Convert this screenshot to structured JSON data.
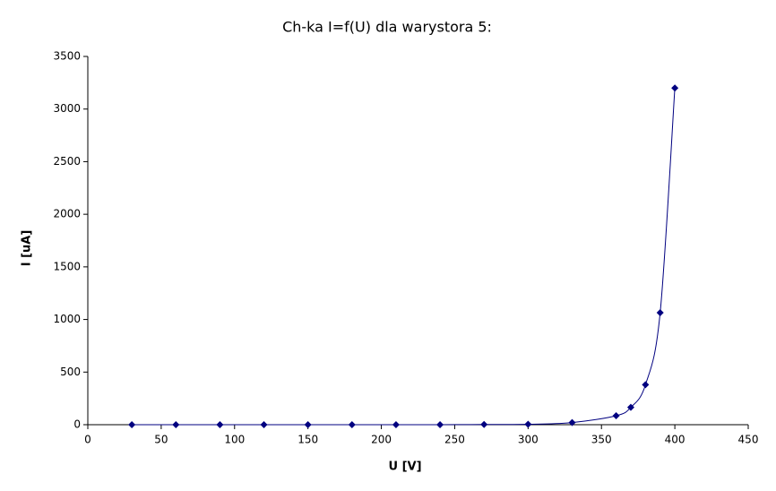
{
  "chart_data": {
    "type": "scatter",
    "title": "Ch-ka I=f(U) dla warystora 5:",
    "x_label": "U [V]",
    "y_label": "I [uA]",
    "x": [
      30,
      60,
      90,
      120,
      150,
      180,
      210,
      240,
      270,
      300,
      330,
      360,
      370,
      380,
      390,
      400
    ],
    "series": [
      {
        "color": "#000080",
        "values": [
          0,
          0,
          0,
          0,
          0,
          0,
          0,
          0,
          2,
          4,
          20,
          85,
          165,
          380,
          1065,
          3200
        ]
      }
    ],
    "xlim": [
      0,
      450
    ],
    "xticks": [
      0,
      50,
      100,
      150,
      200,
      250,
      300,
      350,
      400,
      450
    ],
    "ylim": [
      0,
      3500
    ],
    "yticks": [
      0,
      500,
      1000,
      1500,
      2000,
      2500,
      3000,
      3500
    ],
    "grid": false
  }
}
